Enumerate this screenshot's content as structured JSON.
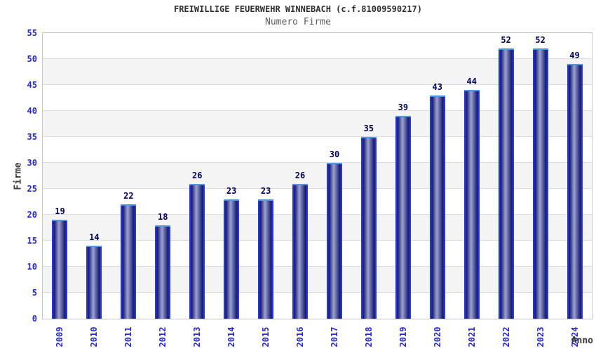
{
  "chart_data": {
    "type": "bar",
    "title": "FREIWILLIGE FEUERWEHR WINNEBACH (c.f.81009590217)",
    "subtitle": "Numero Firme",
    "xlabel": "Anno",
    "ylabel": "Firme",
    "categories": [
      "2009",
      "2010",
      "2011",
      "2012",
      "2013",
      "2014",
      "2015",
      "2016",
      "2017",
      "2018",
      "2019",
      "2020",
      "2021",
      "2022",
      "2023",
      "2024"
    ],
    "values": [
      19,
      14,
      22,
      18,
      26,
      23,
      23,
      26,
      30,
      35,
      39,
      43,
      44,
      52,
      52,
      49
    ],
    "ylim": [
      0,
      55
    ],
    "ytick_step": 5,
    "grid": true,
    "legend": "none",
    "band_pattern": "alternating gray bands between gridlines starting at 5-10",
    "colors": {
      "bar_edge": "#2438d8",
      "bar_body_dark": "#14146a",
      "bar_body_highlight": "#9aa3d2",
      "bar_top_cap": "#4f97e0",
      "tick_label_blue": "#2626d9",
      "value_label_navy": "#000060",
      "title_color": "#2e2e2e",
      "subtitle_color": "#5f5f5f",
      "axis_title_color": "#3a3a3a",
      "band_gray": "#f4f4f4",
      "gridline": "#dcdcdc",
      "plot_border": "#c9c9c9",
      "background": "#ffffff"
    }
  }
}
